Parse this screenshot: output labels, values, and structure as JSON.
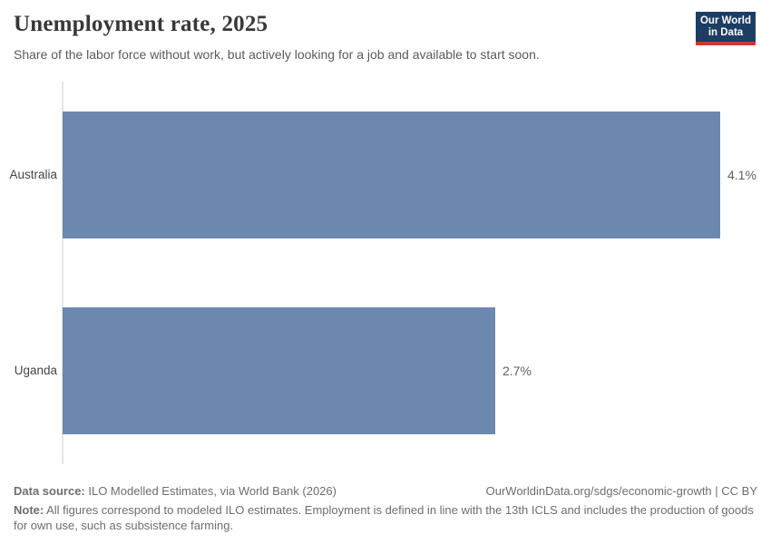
{
  "header": {
    "title": "Unemployment rate, 2025",
    "subtitle": "Share of the labor force without work, but actively looking for a job and available to start soon.",
    "logo": {
      "line1": "Our World",
      "line2": "in Data",
      "bg_color": "#1d3d63",
      "accent_color": "#cd3730"
    }
  },
  "chart_data": {
    "type": "bar",
    "orientation": "horizontal",
    "title": "Unemployment rate, 2025",
    "categories": [
      "Australia",
      "Uganda"
    ],
    "values": [
      4.1,
      2.7
    ],
    "value_labels": [
      "4.1%",
      "2.7%"
    ],
    "unit": "%",
    "xlim": [
      0,
      4.1
    ],
    "bar_color": "#6d88af",
    "grid": false,
    "legend": "none"
  },
  "footer": {
    "data_source_label": "Data source:",
    "data_source_text": " ILO Modelled Estimates, via World Bank (2026)",
    "link_text": "OurWorldinData.org/sdgs/economic-growth | CC BY",
    "note_label": "Note:",
    "note_text": " All figures correspond to modeled ILO estimates. Employment is defined in line with the 13th ICLS and includes the production of goods for own use, such as subsistence farming."
  }
}
